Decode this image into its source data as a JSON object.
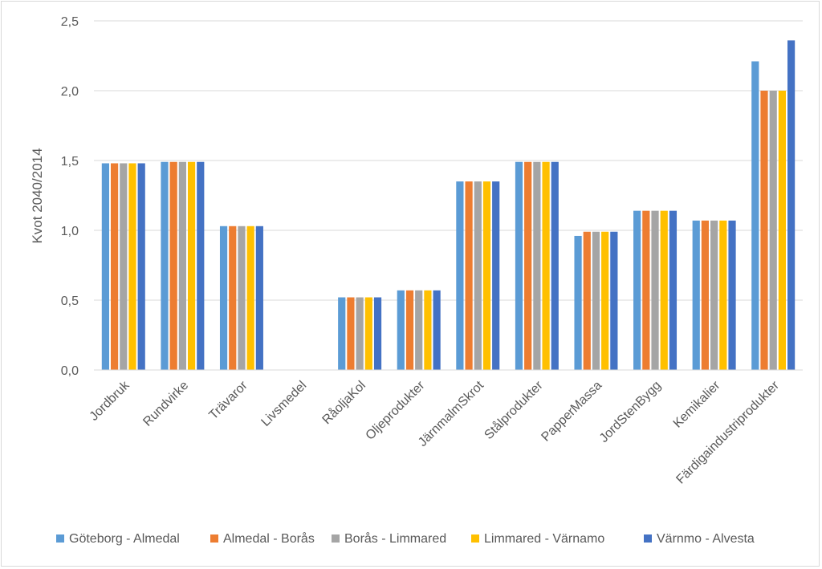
{
  "chart_data": {
    "type": "bar",
    "ylabel": "Kvot 2040/2014",
    "ylim": [
      0,
      2.5
    ],
    "yticks": [
      "0,0",
      "0,5",
      "1,0",
      "1,5",
      "2,0",
      "2,5"
    ],
    "ytick_values": [
      0,
      0.5,
      1.0,
      1.5,
      2.0,
      2.5
    ],
    "grid": true,
    "legend_position": "bottom",
    "categories": [
      "Jordbruk",
      "Rundvirke",
      "Trävaror",
      "Livsmedel",
      "RåoljaKol",
      "Oljeprodukter",
      "JärnmalmSkrot",
      "Stålprodukter",
      "PapperMassa",
      "JordStenBygg",
      "Kemikalier",
      "Färdigaindustriprodukter"
    ],
    "series": [
      {
        "name": "Göteborg - Almedal",
        "color": "#5b9bd5",
        "values": [
          1.48,
          1.49,
          1.03,
          0,
          0.52,
          0.57,
          1.35,
          1.49,
          0.96,
          1.14,
          1.07,
          2.21
        ]
      },
      {
        "name": "Almedal - Borås",
        "color": "#ed7d31",
        "values": [
          1.48,
          1.49,
          1.03,
          0,
          0.52,
          0.57,
          1.35,
          1.49,
          0.99,
          1.14,
          1.07,
          2.0
        ]
      },
      {
        "name": "Borås - Limmared",
        "color": "#a5a5a5",
        "values": [
          1.48,
          1.49,
          1.03,
          0,
          0.52,
          0.57,
          1.35,
          1.49,
          0.99,
          1.14,
          1.07,
          2.0
        ]
      },
      {
        "name": "Limmared - Värnamo",
        "color": "#ffc000",
        "values": [
          1.48,
          1.49,
          1.03,
          0,
          0.52,
          0.57,
          1.35,
          1.49,
          0.99,
          1.14,
          1.07,
          2.0
        ]
      },
      {
        "name": "Värnmo - Alvesta",
        "color": "#4472c4",
        "values": [
          1.48,
          1.49,
          1.03,
          0,
          0.52,
          0.57,
          1.35,
          1.49,
          0.99,
          1.14,
          1.07,
          2.36
        ]
      }
    ]
  }
}
